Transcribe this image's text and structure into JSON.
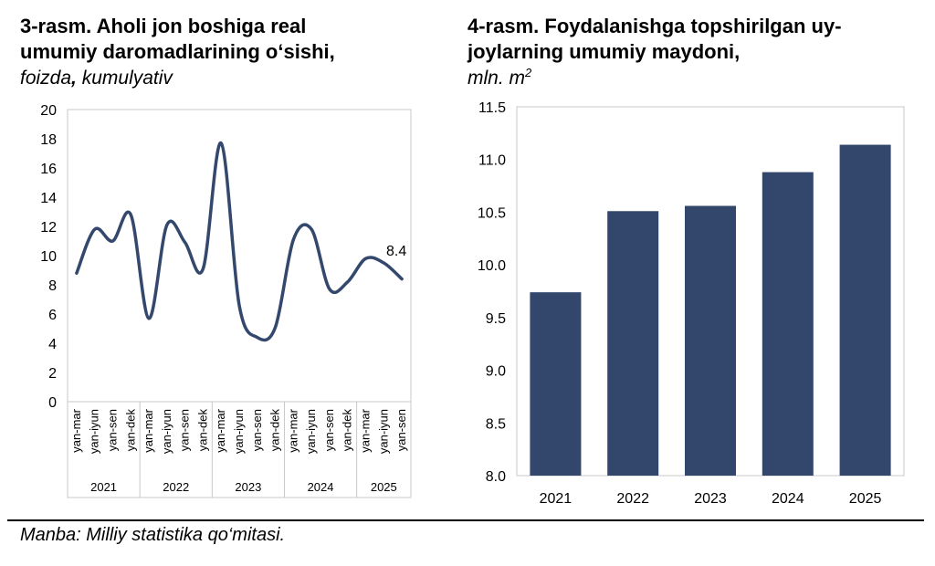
{
  "chart_data": [
    {
      "type": "line",
      "title_line1": "3-rasm. Aholi jon boshiga real",
      "title_line2": "umumiy daromadlarining o‘sishi,",
      "subtitle_italic": "foizda",
      "subtitle_bold_comma": ",",
      "subtitle_rest": " kumulyativ",
      "ylim": [
        0,
        20
      ],
      "yticks": [
        "0",
        "2",
        "4",
        "6",
        "8",
        "10",
        "12",
        "14",
        "16",
        "18",
        "20"
      ],
      "categories": [
        "yan-mar",
        "yan-iyun",
        "yan-sen",
        "yan-dek",
        "yan-mar",
        "yan-iyun",
        "yan-sen",
        "yan-dek",
        "yan-mar",
        "yan-iyun",
        "yan-sen",
        "yan-dek",
        "yan-mar",
        "yan-iyun",
        "yan-sen",
        "yan-dek",
        "yan-mar",
        "yan-iyun",
        "yan-sen"
      ],
      "year_groups": [
        {
          "label": "2021",
          "count": 4
        },
        {
          "label": "2022",
          "count": 4
        },
        {
          "label": "2023",
          "count": 4
        },
        {
          "label": "2024",
          "count": 4
        },
        {
          "label": "2025",
          "count": 3
        }
      ],
      "values": [
        8.8,
        11.8,
        11.0,
        12.8,
        5.7,
        12.1,
        10.9,
        9.1,
        17.7,
        6.6,
        4.4,
        5.1,
        11.1,
        11.8,
        7.7,
        8.2,
        9.8,
        9.5,
        8.4
      ],
      "last_label": "8.4",
      "line_color": "#34486d",
      "grid": false
    },
    {
      "type": "bar",
      "title_line1": "4-rasm. Foydalanishga topshirilgan uy-",
      "title_line2": "joylarning umumiy maydoni,",
      "subtitle_main": "mln. m",
      "subtitle_sup": "2",
      "ylim": [
        8.0,
        11.5
      ],
      "yticks": [
        "8.0",
        "8.5",
        "9.0",
        "9.5",
        "10.0",
        "10.5",
        "11.0",
        "11.5"
      ],
      "categories": [
        "2021",
        "2022",
        "2023",
        "2024",
        "2025"
      ],
      "values": [
        9.74,
        10.51,
        10.56,
        10.88,
        11.14
      ],
      "bar_color": "#32476b",
      "grid": false
    }
  ],
  "footer": {
    "source": "Manba: Milliy statistika qo‘mitasi."
  }
}
